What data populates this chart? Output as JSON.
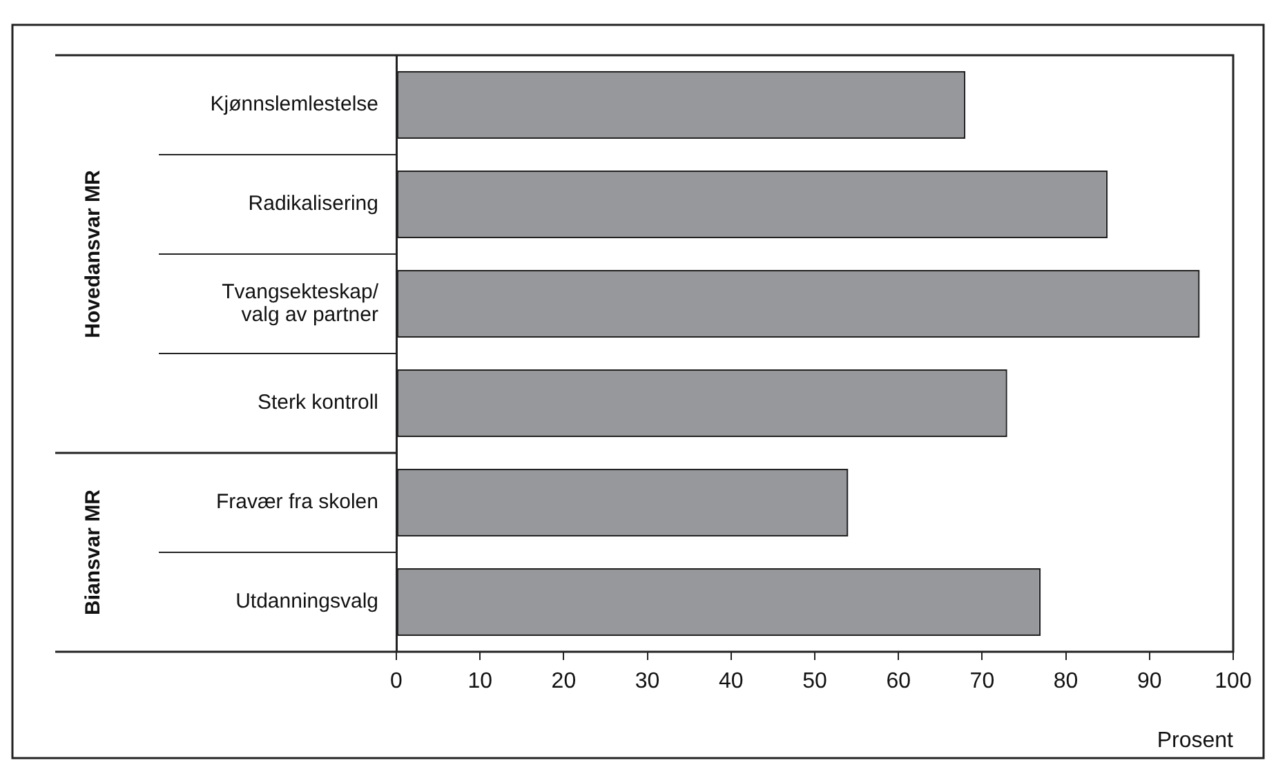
{
  "chart_data": {
    "type": "bar",
    "orientation": "horizontal",
    "categories": [
      "Kjønnslemlestelse",
      "Radikalisering",
      "Tvangsekteskap/\nvalg av partner",
      "Sterk kontroll",
      "Fravær fra skolen",
      "Utdanningsvalg"
    ],
    "values": [
      68,
      85,
      96,
      73,
      54,
      77
    ],
    "color": "#97989b",
    "xlim": [
      0,
      100
    ],
    "xticks": [
      0,
      10,
      20,
      30,
      40,
      50,
      60,
      70,
      80,
      90,
      100
    ],
    "xlabel": "Prosent",
    "annotations": [
      "Hovedansvar MR",
      "Biansvar MR"
    ],
    "grid": false,
    "legend": false
  }
}
